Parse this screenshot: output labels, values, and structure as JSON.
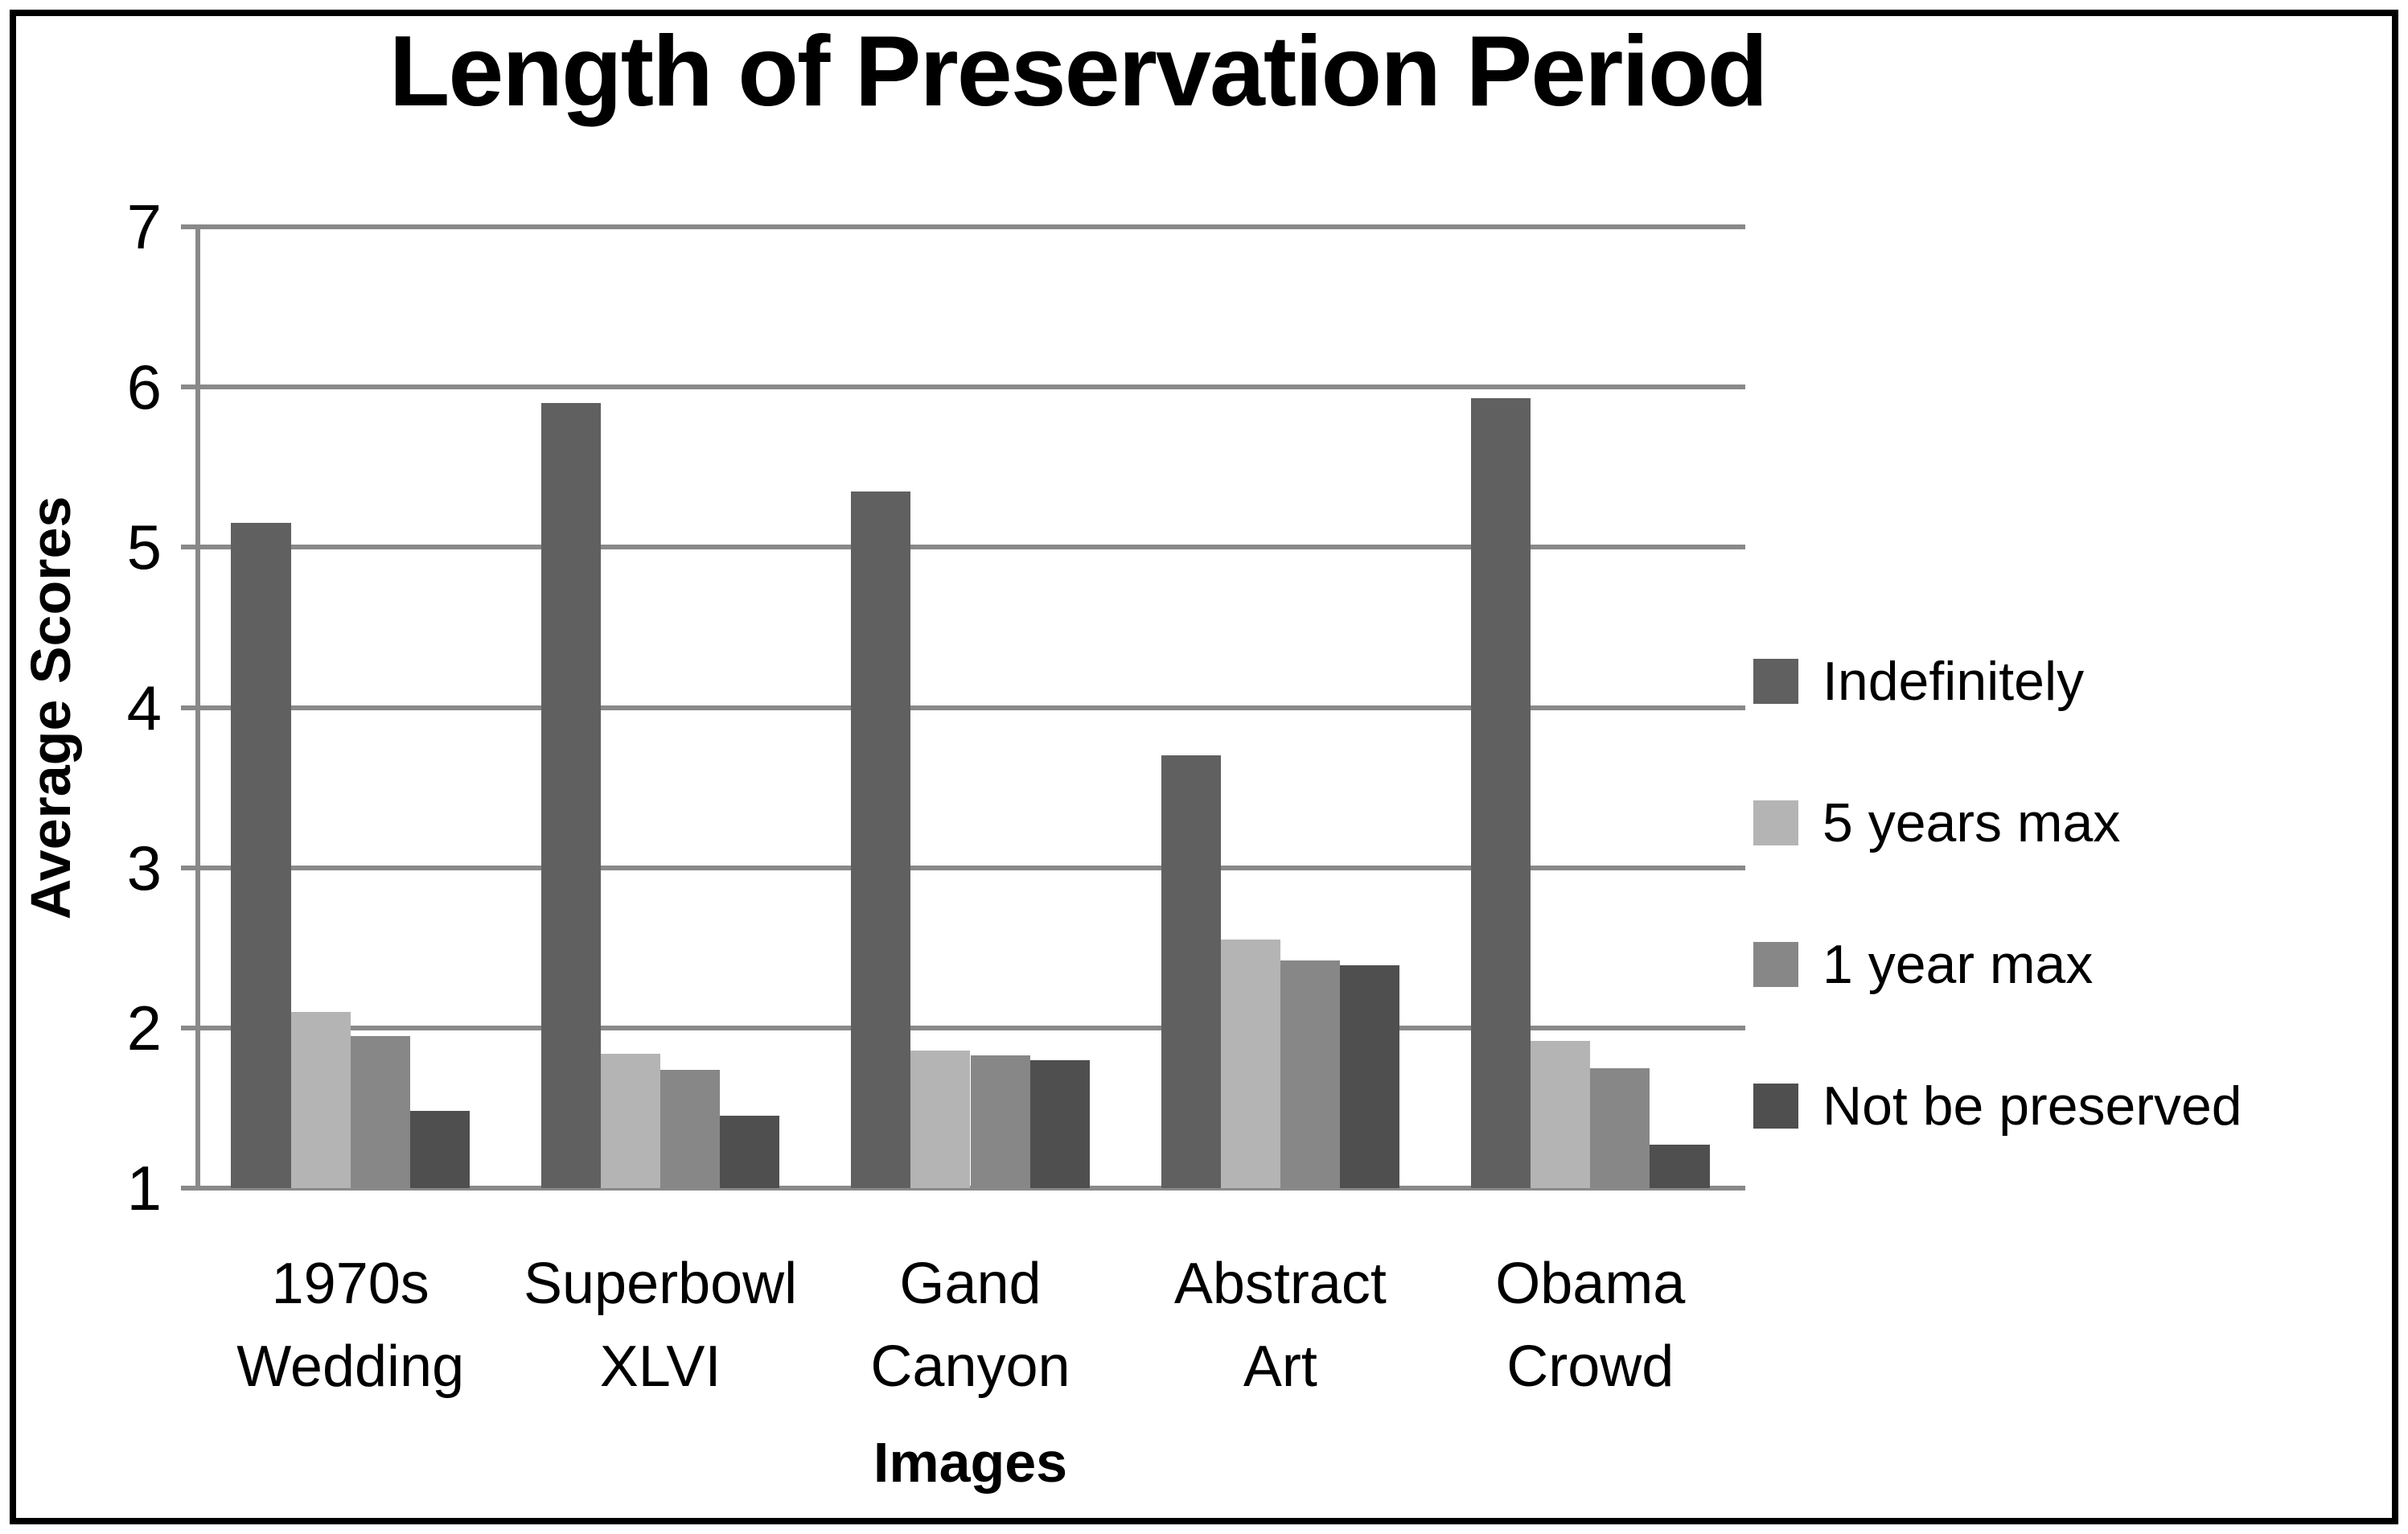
{
  "title": "Length of Preservation Period",
  "y_axis": {
    "title": "Average Scores",
    "ticks": [
      7,
      6,
      5,
      4,
      3,
      2,
      1
    ]
  },
  "x_axis": {
    "title": "Images"
  },
  "legend": {
    "position": "right",
    "entries": [
      "Indefinitely",
      "5 years max",
      "1 year max",
      "Not be preserved"
    ]
  },
  "colors": {
    "series": [
      "#606060",
      "#b4b4b4",
      "#878787",
      "#4f4f4f"
    ],
    "gridline": "#898989",
    "text": "#000000",
    "background": "#ffffff",
    "border": "#000000"
  },
  "chart_data": {
    "type": "bar",
    "title": "Length of Preservation Period",
    "xlabel": "Images",
    "ylabel": "Average Scores",
    "ylim": [
      1,
      7
    ],
    "grid": true,
    "categories": [
      "1970s Wedding",
      "Superbowl XLVI",
      "Gand Canyon",
      "Abstract Art",
      "Obama Crowd"
    ],
    "series": [
      {
        "name": "Indefinitely",
        "color": "#606060",
        "values": [
          5.15,
          5.9,
          5.35,
          3.7,
          5.93
        ]
      },
      {
        "name": "5 years max",
        "color": "#b4b4b4",
        "values": [
          2.1,
          1.84,
          1.86,
          2.55,
          1.92
        ]
      },
      {
        "name": "1 year max",
        "color": "#878787",
        "values": [
          1.95,
          1.74,
          1.83,
          2.42,
          1.75
        ]
      },
      {
        "name": "Not be preserved",
        "color": "#4f4f4f",
        "values": [
          1.48,
          1.45,
          1.8,
          2.39,
          1.27
        ]
      }
    ]
  }
}
